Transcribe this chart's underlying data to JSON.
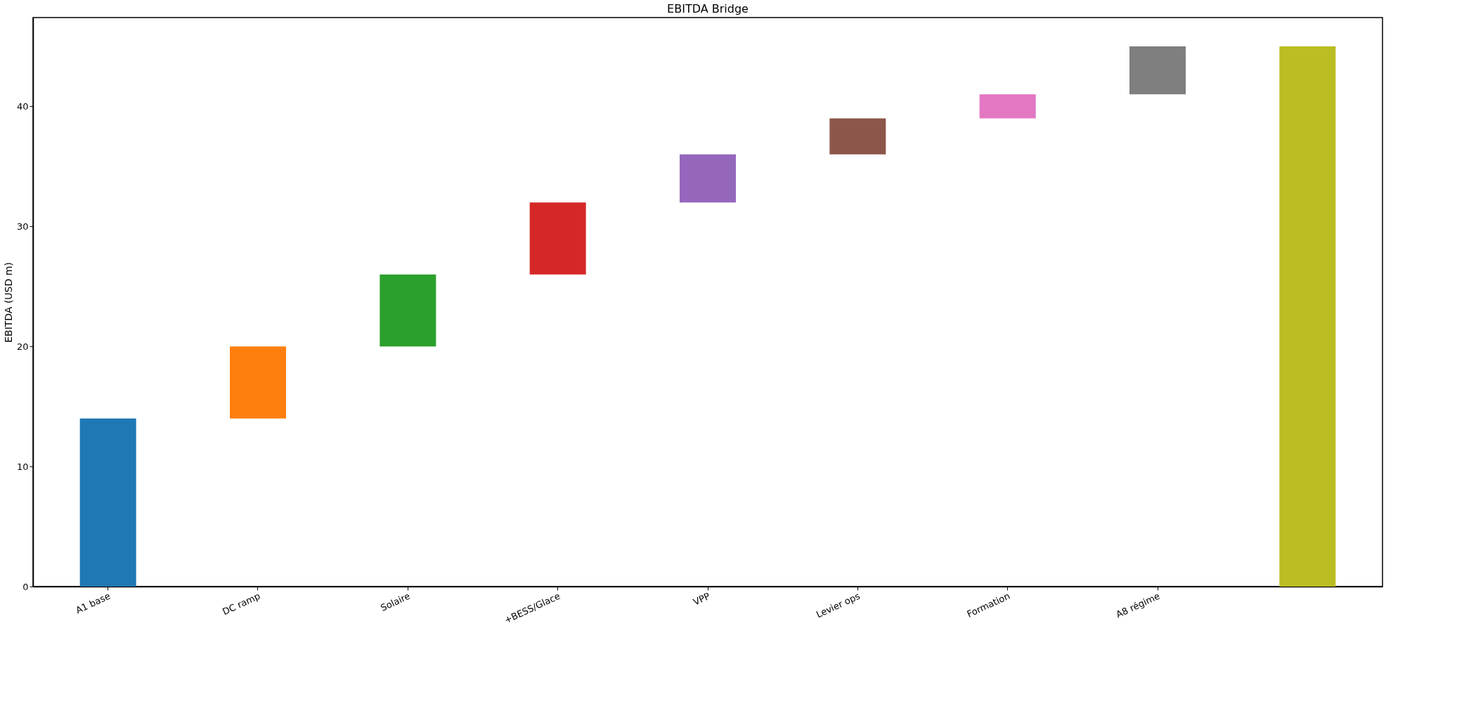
{
  "chart_data": {
    "type": "bar",
    "title": "EBITDA Bridge",
    "ylabel": "EBITDA (USD m)",
    "categories": [
      "A1 base",
      "DC ramp",
      "Solaire",
      "+BESS/Glace",
      "VPP",
      "Levier ops",
      "Formation",
      "A8 régime",
      null
    ],
    "values": [
      14,
      6,
      6,
      6,
      4,
      3,
      2,
      4,
      45
    ],
    "base": [
      0,
      14,
      20,
      26,
      32,
      36,
      39,
      41,
      0
    ],
    "colors": [
      "#1f77b4",
      "#ff7f0e",
      "#2ca02c",
      "#d62728",
      "#9467bd",
      "#8c564b",
      "#e377c2",
      "#7f7f7f",
      "#bcbd22"
    ],
    "ylim": [
      0,
      47.4
    ],
    "yticks": [
      0,
      10,
      20,
      30,
      40
    ],
    "grid": false,
    "legend": false
  }
}
